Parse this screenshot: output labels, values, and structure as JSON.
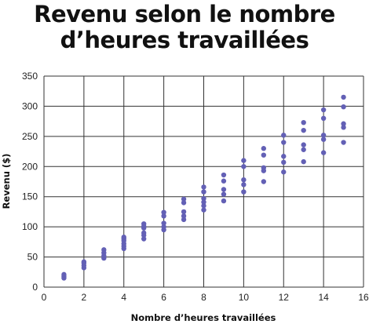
{
  "chart_data": {
    "type": "scatter",
    "title_line1": "Revenu selon le nombre",
    "title_line2": "d’heures travaillées",
    "xlabel": "Nombre d’heures travaillées",
    "ylabel": "Revenu ($)",
    "xlim": [
      0,
      16
    ],
    "ylim": [
      0,
      350
    ],
    "xticks": [
      0,
      2,
      4,
      6,
      8,
      10,
      12,
      14,
      16
    ],
    "yticks": [
      0,
      50,
      100,
      150,
      200,
      250,
      300,
      350
    ],
    "grid": true,
    "point_color": "#6360b5",
    "grid_color": "#333333",
    "points": [
      [
        1,
        15
      ],
      [
        1,
        18
      ],
      [
        1,
        21
      ],
      [
        2,
        32
      ],
      [
        2,
        36
      ],
      [
        2,
        40
      ],
      [
        2,
        42
      ],
      [
        3,
        48
      ],
      [
        3,
        52
      ],
      [
        3,
        57
      ],
      [
        3,
        62
      ],
      [
        4,
        64
      ],
      [
        4,
        68
      ],
      [
        4,
        72
      ],
      [
        4,
        77
      ],
      [
        4,
        80
      ],
      [
        4,
        83
      ],
      [
        5,
        80
      ],
      [
        5,
        86
      ],
      [
        5,
        90
      ],
      [
        5,
        98
      ],
      [
        5,
        101
      ],
      [
        5,
        105
      ],
      [
        6,
        95
      ],
      [
        6,
        100
      ],
      [
        6,
        106
      ],
      [
        6,
        118
      ],
      [
        6,
        124
      ],
      [
        7,
        112
      ],
      [
        7,
        118
      ],
      [
        7,
        125
      ],
      [
        7,
        140
      ],
      [
        7,
        146
      ],
      [
        8,
        128
      ],
      [
        8,
        135
      ],
      [
        8,
        141
      ],
      [
        8,
        147
      ],
      [
        8,
        158
      ],
      [
        8,
        166
      ],
      [
        9,
        143
      ],
      [
        9,
        154
      ],
      [
        9,
        162
      ],
      [
        9,
        176
      ],
      [
        9,
        186
      ],
      [
        10,
        158
      ],
      [
        10,
        170
      ],
      [
        10,
        178
      ],
      [
        10,
        200
      ],
      [
        10,
        210
      ],
      [
        11,
        175
      ],
      [
        11,
        193
      ],
      [
        11,
        198
      ],
      [
        11,
        219
      ],
      [
        11,
        230
      ],
      [
        12,
        191
      ],
      [
        12,
        207
      ],
      [
        12,
        217
      ],
      [
        12,
        240
      ],
      [
        12,
        252
      ],
      [
        13,
        208
      ],
      [
        13,
        228
      ],
      [
        13,
        236
      ],
      [
        13,
        260
      ],
      [
        13,
        273
      ],
      [
        14,
        223
      ],
      [
        14,
        245
      ],
      [
        14,
        252
      ],
      [
        14,
        280
      ],
      [
        14,
        294
      ],
      [
        15,
        240
      ],
      [
        15,
        265
      ],
      [
        15,
        271
      ],
      [
        15,
        299
      ],
      [
        15,
        315
      ]
    ]
  }
}
